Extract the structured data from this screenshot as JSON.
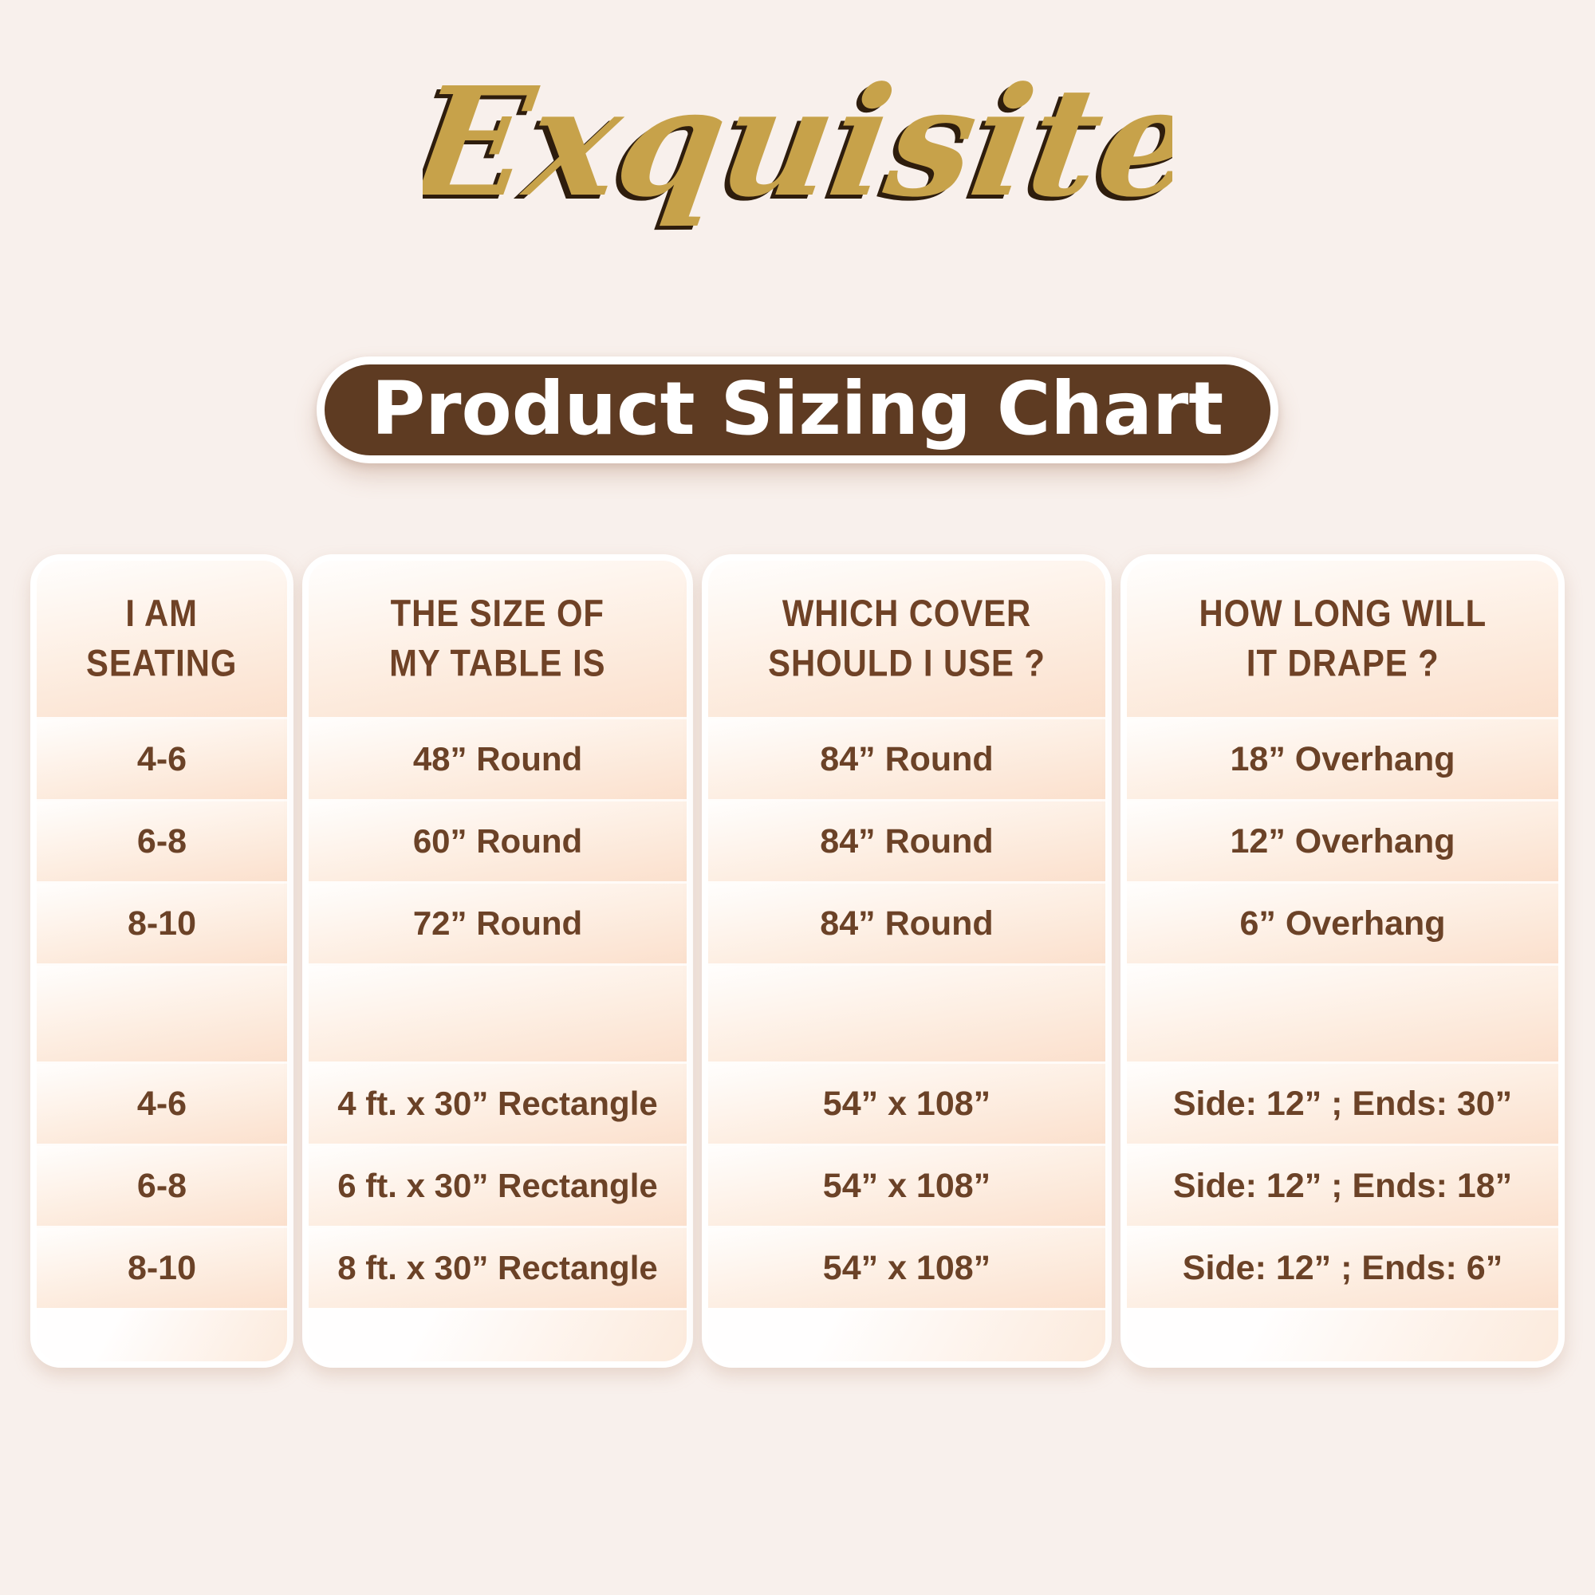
{
  "brand": {
    "logo_text": "Exquisite",
    "logo_color": "#c7a24a",
    "logo_shadow_color": "#2e1d0d"
  },
  "banner": {
    "title": "Product Sizing Chart",
    "bg_color": "#5e3b22",
    "text_color": "#ffffff"
  },
  "table": {
    "columns": [
      {
        "id": "seating",
        "header": "I AM\nSEATING",
        "rows": [
          "4-6",
          "6-8",
          "8-10",
          "",
          "4-6",
          "6-8",
          "8-10"
        ]
      },
      {
        "id": "table-size",
        "header": "THE SIZE OF\nMY TABLE IS",
        "rows": [
          "48” Round",
          "60” Round",
          "72” Round",
          "",
          "4 ft. x 30” Rectangle",
          "6 ft. x 30” Rectangle",
          "8 ft. x 30” Rectangle"
        ]
      },
      {
        "id": "cover",
        "header": "WHICH COVER\nSHOULD I USE ?",
        "rows": [
          "84” Round",
          "84” Round",
          "84” Round",
          "",
          "54” x 108”",
          "54” x 108”",
          "54” x 108”"
        ]
      },
      {
        "id": "drape",
        "header": "HOW LONG WILL\nIT DRAPE ?",
        "rows": [
          "18” Overhang",
          "12” Overhang",
          "6” Overhang",
          "",
          "Side: 12” ; Ends: 30”",
          "Side: 12” ; Ends: 18”",
          "Side: 12” ; Ends: 6”"
        ]
      }
    ]
  },
  "colors": {
    "page_bg": "#f8f0ec",
    "panel_border": "#ffffff",
    "band_light": "#fffefd",
    "band_peach": "#fbe0cd",
    "text_brown": "#6b4227",
    "header_brown": "#6f4226"
  },
  "chart_data": {
    "type": "table",
    "title": "Product Sizing Chart",
    "columns": [
      "I AM SEATING",
      "THE SIZE OF MY TABLE IS",
      "WHICH COVER SHOULD I USE ?",
      "HOW LONG WILL IT DRAPE ?"
    ],
    "rows": [
      [
        "4-6",
        "48” Round",
        "84” Round",
        "18” Overhang"
      ],
      [
        "6-8",
        "60” Round",
        "84” Round",
        "12” Overhang"
      ],
      [
        "8-10",
        "72” Round",
        "84” Round",
        "6” Overhang"
      ],
      [
        "",
        "",
        "",
        ""
      ],
      [
        "4-6",
        "4 ft. x 30” Rectangle",
        "54” x 108”",
        "Side: 12” ; Ends: 30”"
      ],
      [
        "6-8",
        "6 ft. x 30” Rectangle",
        "54” x 108”",
        "Side: 12” ; Ends: 18”"
      ],
      [
        "8-10",
        "8 ft. x 30” Rectangle",
        "54” x 108”",
        "Side: 12” ; Ends: 6”"
      ]
    ]
  }
}
